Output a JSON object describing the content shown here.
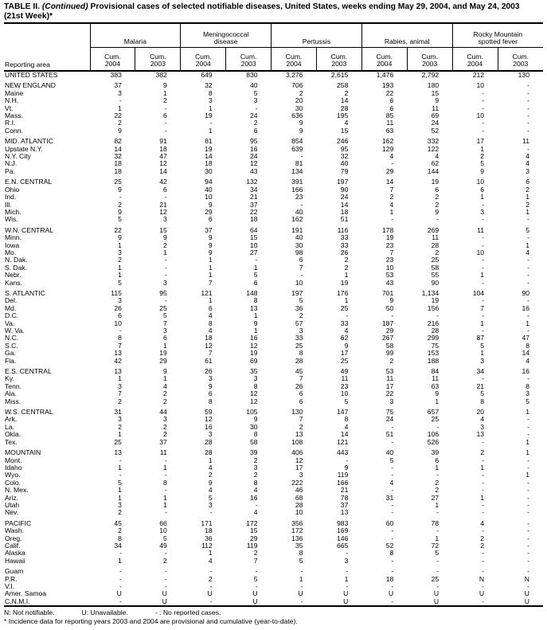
{
  "title": {
    "part1": "TABLE II. ",
    "continued": "(Continued)",
    "part2": " Provisional cases of selected notifiable diseases, United States, weeks ending May 29, 2004, and May 24, 2003",
    "line2": "(21st Week)*"
  },
  "table": {
    "reporting_area_label": "Reporting area",
    "column_groups": [
      {
        "label_lines": [
          "Malaria"
        ]
      },
      {
        "label_lines": [
          "Meningococcal",
          "disease"
        ]
      },
      {
        "label_lines": [
          "Pertussis"
        ]
      },
      {
        "label_lines": [
          "Rabies, animal"
        ]
      },
      {
        "label_lines": [
          "Rocky Mountain",
          "spotted fever"
        ]
      }
    ],
    "subcolumns": [
      [
        "Cum.",
        "2004"
      ],
      [
        "Cum.",
        "2003"
      ]
    ],
    "row_groups": [
      [
        {
          "area": "UNITED STATES",
          "values": [
            "383",
            "382",
            "649",
            "830",
            "3,276",
            "2,615",
            "1,476",
            "2,792",
            "212",
            "130"
          ]
        }
      ],
      [
        {
          "area": "NEW ENGLAND",
          "values": [
            "37",
            "9",
            "32",
            "40",
            "706",
            "258",
            "193",
            "180",
            "10",
            "-"
          ]
        },
        {
          "area": "Maine",
          "values": [
            "3",
            "1",
            "8",
            "5",
            "2",
            "2",
            "22",
            "15",
            "-",
            "-"
          ]
        },
        {
          "area": "N.H.",
          "values": [
            "-",
            "2",
            "3",
            "3",
            "20",
            "14",
            "6",
            "9",
            "-",
            "-"
          ]
        },
        {
          "area": "Vt.",
          "values": [
            "1",
            "-",
            "1",
            "-",
            "30",
            "28",
            "6",
            "11",
            "-",
            "-"
          ]
        },
        {
          "area": "Mass.",
          "values": [
            "22",
            "6",
            "19",
            "24",
            "636",
            "195",
            "85",
            "69",
            "10",
            "-"
          ]
        },
        {
          "area": "R.I.",
          "values": [
            "2",
            "-",
            "-",
            "2",
            "9",
            "4",
            "11",
            "24",
            "-",
            "-"
          ]
        },
        {
          "area": "Conn.",
          "values": [
            "9",
            "-",
            "1",
            "6",
            "9",
            "15",
            "63",
            "52",
            "-",
            "-"
          ]
        }
      ],
      [
        {
          "area": "MID. ATLANTIC",
          "values": [
            "82",
            "91",
            "81",
            "95",
            "854",
            "246",
            "162",
            "332",
            "17",
            "11"
          ]
        },
        {
          "area": "Upstate N.Y.",
          "values": [
            "14",
            "18",
            "19",
            "16",
            "639",
            "95",
            "129",
            "122",
            "1",
            "-"
          ]
        },
        {
          "area": "N.Y. City",
          "values": [
            "32",
            "47",
            "14",
            "24",
            "-",
            "32",
            "4",
            "4",
            "2",
            "4"
          ]
        },
        {
          "area": "N.J.",
          "values": [
            "18",
            "12",
            "18",
            "12",
            "81",
            "40",
            "-",
            "62",
            "5",
            "4"
          ]
        },
        {
          "area": "Pa.",
          "values": [
            "18",
            "14",
            "30",
            "43",
            "134",
            "79",
            "29",
            "144",
            "9",
            "3"
          ]
        }
      ],
      [
        {
          "area": "E.N. CENTRAL",
          "values": [
            "25",
            "42",
            "94",
            "132",
            "391",
            "197",
            "14",
            "19",
            "10",
            "6"
          ]
        },
        {
          "area": "Ohio",
          "values": [
            "9",
            "6",
            "40",
            "34",
            "166",
            "90",
            "7",
            "6",
            "6",
            "2"
          ]
        },
        {
          "area": "Ind.",
          "values": [
            "-",
            "-",
            "10",
            "21",
            "23",
            "24",
            "2",
            "2",
            "1",
            "1"
          ]
        },
        {
          "area": "Ill.",
          "values": [
            "2",
            "21",
            "9",
            "37",
            "-",
            "14",
            "4",
            "2",
            "-",
            "2"
          ]
        },
        {
          "area": "Mich.",
          "values": [
            "9",
            "12",
            "29",
            "22",
            "40",
            "18",
            "1",
            "9",
            "3",
            "1"
          ]
        },
        {
          "area": "Wis.",
          "values": [
            "5",
            "3",
            "6",
            "18",
            "162",
            "51",
            "-",
            "-",
            "-",
            "-"
          ]
        }
      ],
      [
        {
          "area": "W.N. CENTRAL",
          "values": [
            "22",
            "15",
            "37",
            "64",
            "191",
            "116",
            "178",
            "269",
            "11",
            "5"
          ]
        },
        {
          "area": "Minn.",
          "values": [
            "9",
            "9",
            "9",
            "15",
            "40",
            "33",
            "19",
            "11",
            "-",
            "-"
          ]
        },
        {
          "area": "Iowa",
          "values": [
            "1",
            "2",
            "9",
            "10",
            "30",
            "33",
            "23",
            "28",
            "-",
            "1"
          ]
        },
        {
          "area": "Mo.",
          "values": [
            "3",
            "1",
            "9",
            "27",
            "98",
            "26",
            "7",
            "2",
            "10",
            "4"
          ]
        },
        {
          "area": "N. Dak.",
          "values": [
            "2",
            "-",
            "1",
            "-",
            "6",
            "2",
            "23",
            "25",
            "-",
            "-"
          ]
        },
        {
          "area": "S. Dak.",
          "values": [
            "1",
            "-",
            "1",
            "1",
            "7",
            "2",
            "10",
            "58",
            "-",
            "-"
          ]
        },
        {
          "area": "Nebr.",
          "values": [
            "1",
            "-",
            "1",
            "5",
            "-",
            "1",
            "53",
            "55",
            "1",
            "-"
          ]
        },
        {
          "area": "Kans.",
          "values": [
            "5",
            "3",
            "7",
            "6",
            "10",
            "19",
            "43",
            "90",
            "-",
            "-"
          ]
        }
      ],
      [
        {
          "area": "S. ATLANTIC",
          "values": [
            "115",
            "95",
            "121",
            "148",
            "197",
            "176",
            "701",
            "1,134",
            "104",
            "90"
          ]
        },
        {
          "area": "Del.",
          "values": [
            "3",
            "-",
            "1",
            "8",
            "5",
            "1",
            "9",
            "19",
            "-",
            "-"
          ]
        },
        {
          "area": "Md.",
          "values": [
            "26",
            "25",
            "6",
            "13",
            "36",
            "25",
            "50",
            "156",
            "7",
            "16"
          ]
        },
        {
          "area": "D.C.",
          "values": [
            "6",
            "5",
            "4",
            "1",
            "2",
            "-",
            "-",
            "-",
            "-",
            "-"
          ]
        },
        {
          "area": "Va.",
          "values": [
            "10",
            "7",
            "8",
            "9",
            "57",
            "33",
            "187",
            "216",
            "1",
            "1"
          ]
        },
        {
          "area": "W. Va.",
          "values": [
            "-",
            "3",
            "4",
            "1",
            "3",
            "4",
            "29",
            "28",
            "-",
            "-"
          ]
        },
        {
          "area": "N.C.",
          "values": [
            "8",
            "6",
            "18",
            "16",
            "33",
            "62",
            "267",
            "299",
            "87",
            "47"
          ]
        },
        {
          "area": "S.C.",
          "values": [
            "7",
            "1",
            "12",
            "12",
            "25",
            "9",
            "58",
            "75",
            "5",
            "8"
          ]
        },
        {
          "area": "Ga.",
          "values": [
            "13",
            "19",
            "7",
            "19",
            "8",
            "17",
            "99",
            "153",
            "1",
            "14"
          ]
        },
        {
          "area": "Fla.",
          "values": [
            "42",
            "29",
            "61",
            "69",
            "28",
            "25",
            "2",
            "188",
            "3",
            "4"
          ]
        }
      ],
      [
        {
          "area": "E.S. CENTRAL",
          "values": [
            "13",
            "9",
            "26",
            "35",
            "45",
            "49",
            "53",
            "84",
            "34",
            "16"
          ]
        },
        {
          "area": "Ky.",
          "values": [
            "1",
            "1",
            "3",
            "3",
            "7",
            "11",
            "11",
            "11",
            "-",
            "-"
          ]
        },
        {
          "area": "Tenn.",
          "values": [
            "3",
            "4",
            "9",
            "8",
            "26",
            "23",
            "17",
            "63",
            "21",
            "8"
          ]
        },
        {
          "area": "Ala.",
          "values": [
            "7",
            "2",
            "6",
            "12",
            "6",
            "10",
            "22",
            "9",
            "5",
            "3"
          ]
        },
        {
          "area": "Miss.",
          "values": [
            "2",
            "2",
            "8",
            "12",
            "6",
            "5",
            "3",
            "1",
            "8",
            "5"
          ]
        }
      ],
      [
        {
          "area": "W.S. CENTRAL",
          "values": [
            "31",
            "44",
            "59",
            "105",
            "130",
            "147",
            "75",
            "657",
            "20",
            "1"
          ]
        },
        {
          "area": "Ark.",
          "values": [
            "3",
            "3",
            "12",
            "9",
            "7",
            "8",
            "24",
            "25",
            "4",
            "-"
          ]
        },
        {
          "area": "La.",
          "values": [
            "2",
            "2",
            "16",
            "30",
            "2",
            "4",
            "-",
            "-",
            "3",
            "-"
          ]
        },
        {
          "area": "Okla.",
          "values": [
            "1",
            "2",
            "3",
            "8",
            "13",
            "14",
            "51",
            "106",
            "13",
            "-"
          ]
        },
        {
          "area": "Tex.",
          "values": [
            "25",
            "37",
            "28",
            "58",
            "108",
            "121",
            "-",
            "526",
            "-",
            "1"
          ]
        }
      ],
      [
        {
          "area": "MOUNTAIN",
          "values": [
            "13",
            "11",
            "28",
            "39",
            "406",
            "443",
            "40",
            "39",
            "2",
            "1"
          ]
        },
        {
          "area": "Mont.",
          "values": [
            "-",
            "-",
            "1",
            "2",
            "12",
            "-",
            "5",
            "6",
            "-",
            "-"
          ]
        },
        {
          "area": "Idaho",
          "values": [
            "1",
            "1",
            "4",
            "3",
            "17",
            "9",
            "-",
            "1",
            "1",
            "-"
          ]
        },
        {
          "area": "Wyo.",
          "values": [
            "-",
            "-",
            "2",
            "2",
            "3",
            "119",
            "-",
            "-",
            "-",
            "1"
          ]
        },
        {
          "area": "Colo.",
          "values": [
            "5",
            "8",
            "9",
            "8",
            "222",
            "166",
            "4",
            "2",
            "-",
            "-"
          ]
        },
        {
          "area": "N. Mex.",
          "values": [
            "1",
            "-",
            "4",
            "4",
            "46",
            "21",
            "-",
            "2",
            "-",
            "-"
          ]
        },
        {
          "area": "Ariz.",
          "values": [
            "1",
            "1",
            "5",
            "16",
            "68",
            "78",
            "31",
            "27",
            "1",
            "-"
          ]
        },
        {
          "area": "Utah",
          "values": [
            "3",
            "1",
            "3",
            "-",
            "28",
            "37",
            "-",
            "1",
            "-",
            "-"
          ]
        },
        {
          "area": "Nev.",
          "values": [
            "2",
            "-",
            "-",
            "4",
            "10",
            "13",
            "-",
            "-",
            "-",
            "-"
          ]
        }
      ],
      [
        {
          "area": "PACIFIC",
          "values": [
            "45",
            "66",
            "171",
            "172",
            "356",
            "983",
            "60",
            "78",
            "4",
            "-"
          ]
        },
        {
          "area": "Wash.",
          "values": [
            "2",
            "10",
            "18",
            "15",
            "172",
            "169",
            "-",
            "-",
            "-",
            "-"
          ]
        },
        {
          "area": "Oreg.",
          "values": [
            "8",
            "5",
            "36",
            "29",
            "136",
            "146",
            "-",
            "1",
            "2",
            "-"
          ]
        },
        {
          "area": "Calif.",
          "values": [
            "34",
            "49",
            "112",
            "119",
            "35",
            "665",
            "52",
            "72",
            "2",
            "-"
          ]
        },
        {
          "area": "Alaska",
          "values": [
            "-",
            "-",
            "1",
            "2",
            "8",
            "-",
            "8",
            "5",
            "-",
            "-"
          ]
        },
        {
          "area": "Hawaii",
          "values": [
            "1",
            "2",
            "4",
            "7",
            "5",
            "3",
            "-",
            "-",
            "-",
            "-"
          ]
        }
      ],
      [
        {
          "area": "Guam",
          "values": [
            "-",
            "-",
            "-",
            "-",
            "-",
            "-",
            "-",
            "-",
            "-",
            "-"
          ]
        },
        {
          "area": "P.R.",
          "values": [
            "-",
            "-",
            "2",
            "5",
            "1",
            "1",
            "18",
            "25",
            "N",
            "N"
          ]
        },
        {
          "area": "V.I.",
          "values": [
            "-",
            "-",
            "-",
            "-",
            "-",
            "-",
            "-",
            "-",
            "-",
            "-"
          ]
        },
        {
          "area": "Amer. Samoa",
          "values": [
            "U",
            "U",
            "U",
            "U",
            "U",
            "U",
            "U",
            "U",
            "U",
            "U"
          ]
        },
        {
          "area": "C.N.M.I.",
          "values": [
            "-",
            "U",
            "-",
            "U",
            "-",
            "U",
            "-",
            "U",
            "-",
            "U"
          ]
        }
      ]
    ]
  },
  "footnotes": {
    "legend": [
      "N: Not notifiable.",
      "U: Unavailable.",
      "- : No reported cases."
    ],
    "note": "* Incidence data for reporting years 2003 and 2004 are provisional and cumulative (year-to-date)."
  }
}
